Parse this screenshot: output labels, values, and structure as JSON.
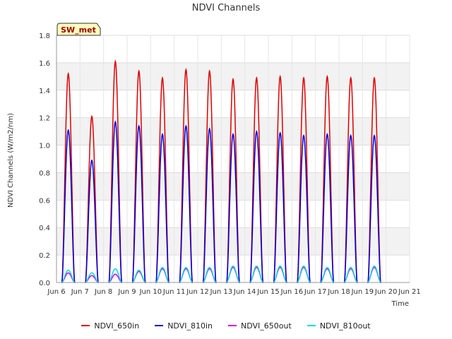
{
  "chart_data": {
    "type": "line",
    "title": "NDVI Channels",
    "xlabel": "Time",
    "ylabel": "NDVI Channels (W/m2/nm)",
    "badge": "SW_met",
    "xlim": [
      6,
      21
    ],
    "ylim": [
      0,
      1.8
    ],
    "xticks": [
      6,
      7,
      8,
      9,
      10,
      11,
      12,
      13,
      14,
      15,
      16,
      17,
      18,
      19,
      20,
      21
    ],
    "xtick_labels": [
      "Jun 6",
      "Jun 7",
      "Jun 8",
      "Jun 9",
      "Jun 10",
      "Jun 11",
      "Jun 12",
      "Jun 13",
      "Jun 14",
      "Jun 15",
      "Jun 16",
      "Jun 17",
      "Jun 18",
      "Jun 19",
      "Jun 20",
      "Jun 21"
    ],
    "yticks": [
      0.0,
      0.2,
      0.4,
      0.6,
      0.8,
      1.0,
      1.2,
      1.4,
      1.6,
      1.8
    ],
    "ytick_labels": [
      "0.0",
      "0.2",
      "0.4",
      "0.6",
      "0.8",
      "1.0",
      "1.2",
      "1.4",
      "1.6",
      "1.8"
    ],
    "days": [
      6.5,
      7.5,
      8.5,
      9.5,
      10.5,
      11.5,
      12.5,
      13.5,
      14.5,
      15.5,
      16.5,
      17.5,
      18.5,
      19.5
    ],
    "series": [
      {
        "name": "NDVI_650in",
        "color": "#dd0000",
        "daily_peaks": [
          1.52,
          1.21,
          1.61,
          1.54,
          1.49,
          1.55,
          1.54,
          1.48,
          1.49,
          1.5,
          1.49,
          1.5,
          1.49,
          1.49
        ]
      },
      {
        "name": "NDVI_810in",
        "color": "#0000dd",
        "daily_peaks": [
          1.11,
          0.89,
          1.17,
          1.14,
          1.08,
          1.14,
          1.12,
          1.08,
          1.1,
          1.09,
          1.07,
          1.08,
          1.07,
          1.07
        ]
      },
      {
        "name": "NDVI_650out",
        "color": "#dd00dd",
        "daily_peaks": [
          0.07,
          0.05,
          0.06,
          0.08,
          0.1,
          0.1,
          0.1,
          0.11,
          0.11,
          0.11,
          0.11,
          0.1,
          0.1,
          0.11
        ]
      },
      {
        "name": "NDVI_810out",
        "color": "#00dddd",
        "daily_peaks": [
          0.09,
          0.07,
          0.1,
          0.09,
          0.11,
          0.11,
          0.11,
          0.12,
          0.12,
          0.12,
          0.12,
          0.11,
          0.11,
          0.12
        ]
      }
    ],
    "legend_position": "bottom-center",
    "grid": true
  }
}
